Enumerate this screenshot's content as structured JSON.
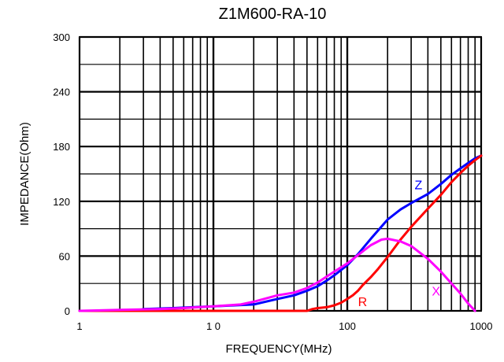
{
  "chart_data": {
    "type": "line",
    "title": "Z1M600-RA-10",
    "xlabel": "FREQUENCY(MHz)",
    "ylabel": "IMPEDANCE(Ohm)",
    "x_scale": "log",
    "xlim": [
      1,
      1000
    ],
    "ylim": [
      0,
      300
    ],
    "x_ticks": [
      1,
      10,
      100,
      1000
    ],
    "x_tick_labels": [
      "1",
      "1 0",
      "100",
      "1000"
    ],
    "y_ticks": [
      0,
      60,
      120,
      180,
      240,
      300
    ],
    "y_tick_labels": [
      "0",
      "60",
      "120",
      "180",
      "240",
      "300"
    ],
    "grid": true,
    "legend": "inline-labels",
    "series": [
      {
        "name": "Z",
        "color": "#0000ff",
        "x": [
          1,
          2.7,
          3,
          5,
          10,
          20,
          30,
          40,
          50,
          60,
          70,
          80,
          100,
          120,
          150,
          200,
          250,
          300,
          400,
          500,
          600,
          700,
          800,
          900,
          1000
        ],
        "y": [
          0,
          0,
          2,
          3,
          5,
          7,
          13,
          17,
          22,
          27,
          33,
          39,
          50,
          62,
          79,
          100,
          111,
          118,
          128,
          139,
          149,
          156,
          162,
          167,
          170
        ]
      },
      {
        "name": "R",
        "color": "#ff0000",
        "x": [
          1,
          50,
          55,
          60,
          70,
          80,
          90,
          100,
          110,
          120,
          130,
          150,
          170,
          200,
          250,
          300,
          400,
          500,
          600,
          700,
          800,
          900,
          1000
        ],
        "y": [
          0,
          0,
          2,
          3,
          4,
          6,
          9,
          13,
          17,
          22,
          28,
          37,
          46,
          59,
          78,
          92,
          112,
          127,
          141,
          151,
          159,
          165,
          170
        ]
      },
      {
        "name": "X",
        "color": "#ff00ff",
        "x": [
          1,
          2,
          4,
          6,
          10,
          16,
          20,
          30,
          40,
          50,
          60,
          80,
          100,
          120,
          150,
          180,
          200,
          250,
          300,
          400,
          500,
          600,
          700,
          800,
          900
        ],
        "y": [
          0,
          1,
          2,
          3,
          5,
          7,
          10,
          17,
          20,
          25,
          31,
          43,
          52,
          61,
          72,
          78,
          79,
          76,
          71,
          57,
          43,
          30,
          19,
          8,
          0
        ]
      }
    ],
    "series_labels": [
      {
        "text": "Z",
        "at_x": 340,
        "at_y": 133
      },
      {
        "text": "R",
        "at_x": 130,
        "at_y": 5
      },
      {
        "text": "X",
        "at_x": 460,
        "at_y": 17
      }
    ]
  }
}
